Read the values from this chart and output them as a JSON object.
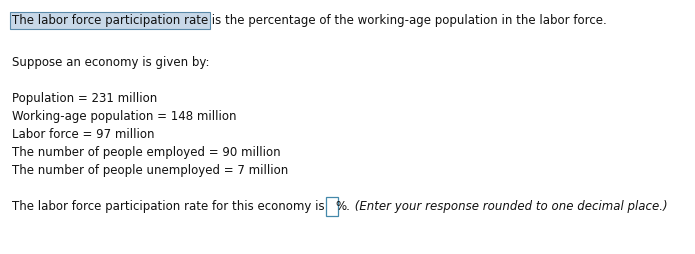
{
  "background_color": "#ffffff",
  "highlight_text": "The labor force participation rate",
  "highlight_bg": "#c8d8e8",
  "highlight_border": "#5a8aaa",
  "rest_of_line1": " is the percentage of the working-age population in the labor force.",
  "line2": "Suppose an economy is given by:",
  "line3": "Population = 231 million",
  "line4": "Working-age population = 148 million",
  "line5": "Labor force = 97 million",
  "line6": "The number of people employed = 90 million",
  "line7": "The number of people unemployed = 7 million",
  "line8_before": "The labor force participation rate for this economy is ",
  "line8_after_pct": "%.",
  "line8_italic": " (Enter your response rounded to one decimal place.)",
  "font_size": 8.5,
  "text_color": "#111111",
  "fig_width": 6.95,
  "fig_height": 2.54,
  "dpi": 100
}
